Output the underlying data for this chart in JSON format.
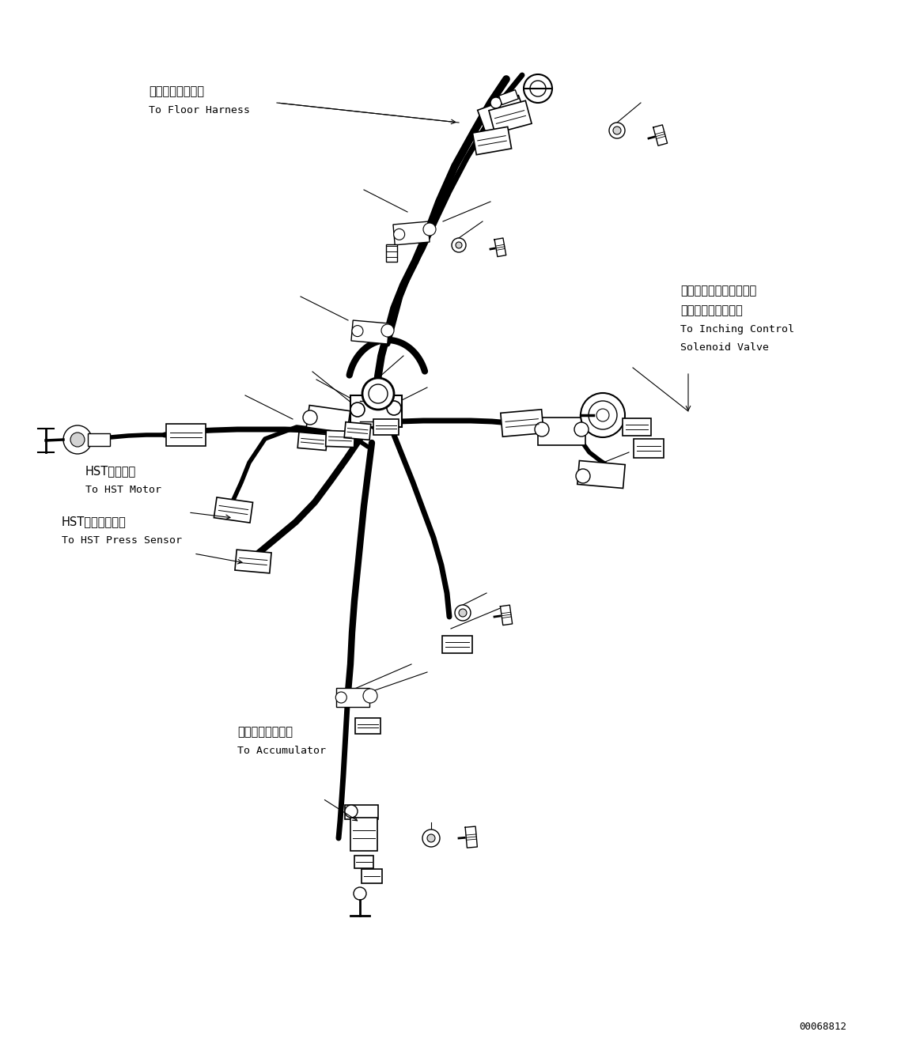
{
  "background_color": "#ffffff",
  "line_color": "#000000",
  "fig_width": 11.63,
  "fig_height": 13.19,
  "dpi": 100,
  "part_number": "00068812",
  "label_floor_jp": "フロアハーネスへ",
  "label_floor_en": "To Floor Harness",
  "label_inching_jp1": "インチングコントロール",
  "label_inching_jp2": "ソレノイドバルブへ",
  "label_inching_en1": "To Inching Control",
  "label_inching_en2": "Solenoid Valve",
  "label_hst_motor_jp": "HSTモータへ",
  "label_hst_motor_en": "To HST Motor",
  "label_hst_press_jp": "HST油圧センサへ",
  "label_hst_press_en": "To HST Press Sensor",
  "label_accum_jp": "アキュムレータへ",
  "label_accum_en": "To Accumulator"
}
